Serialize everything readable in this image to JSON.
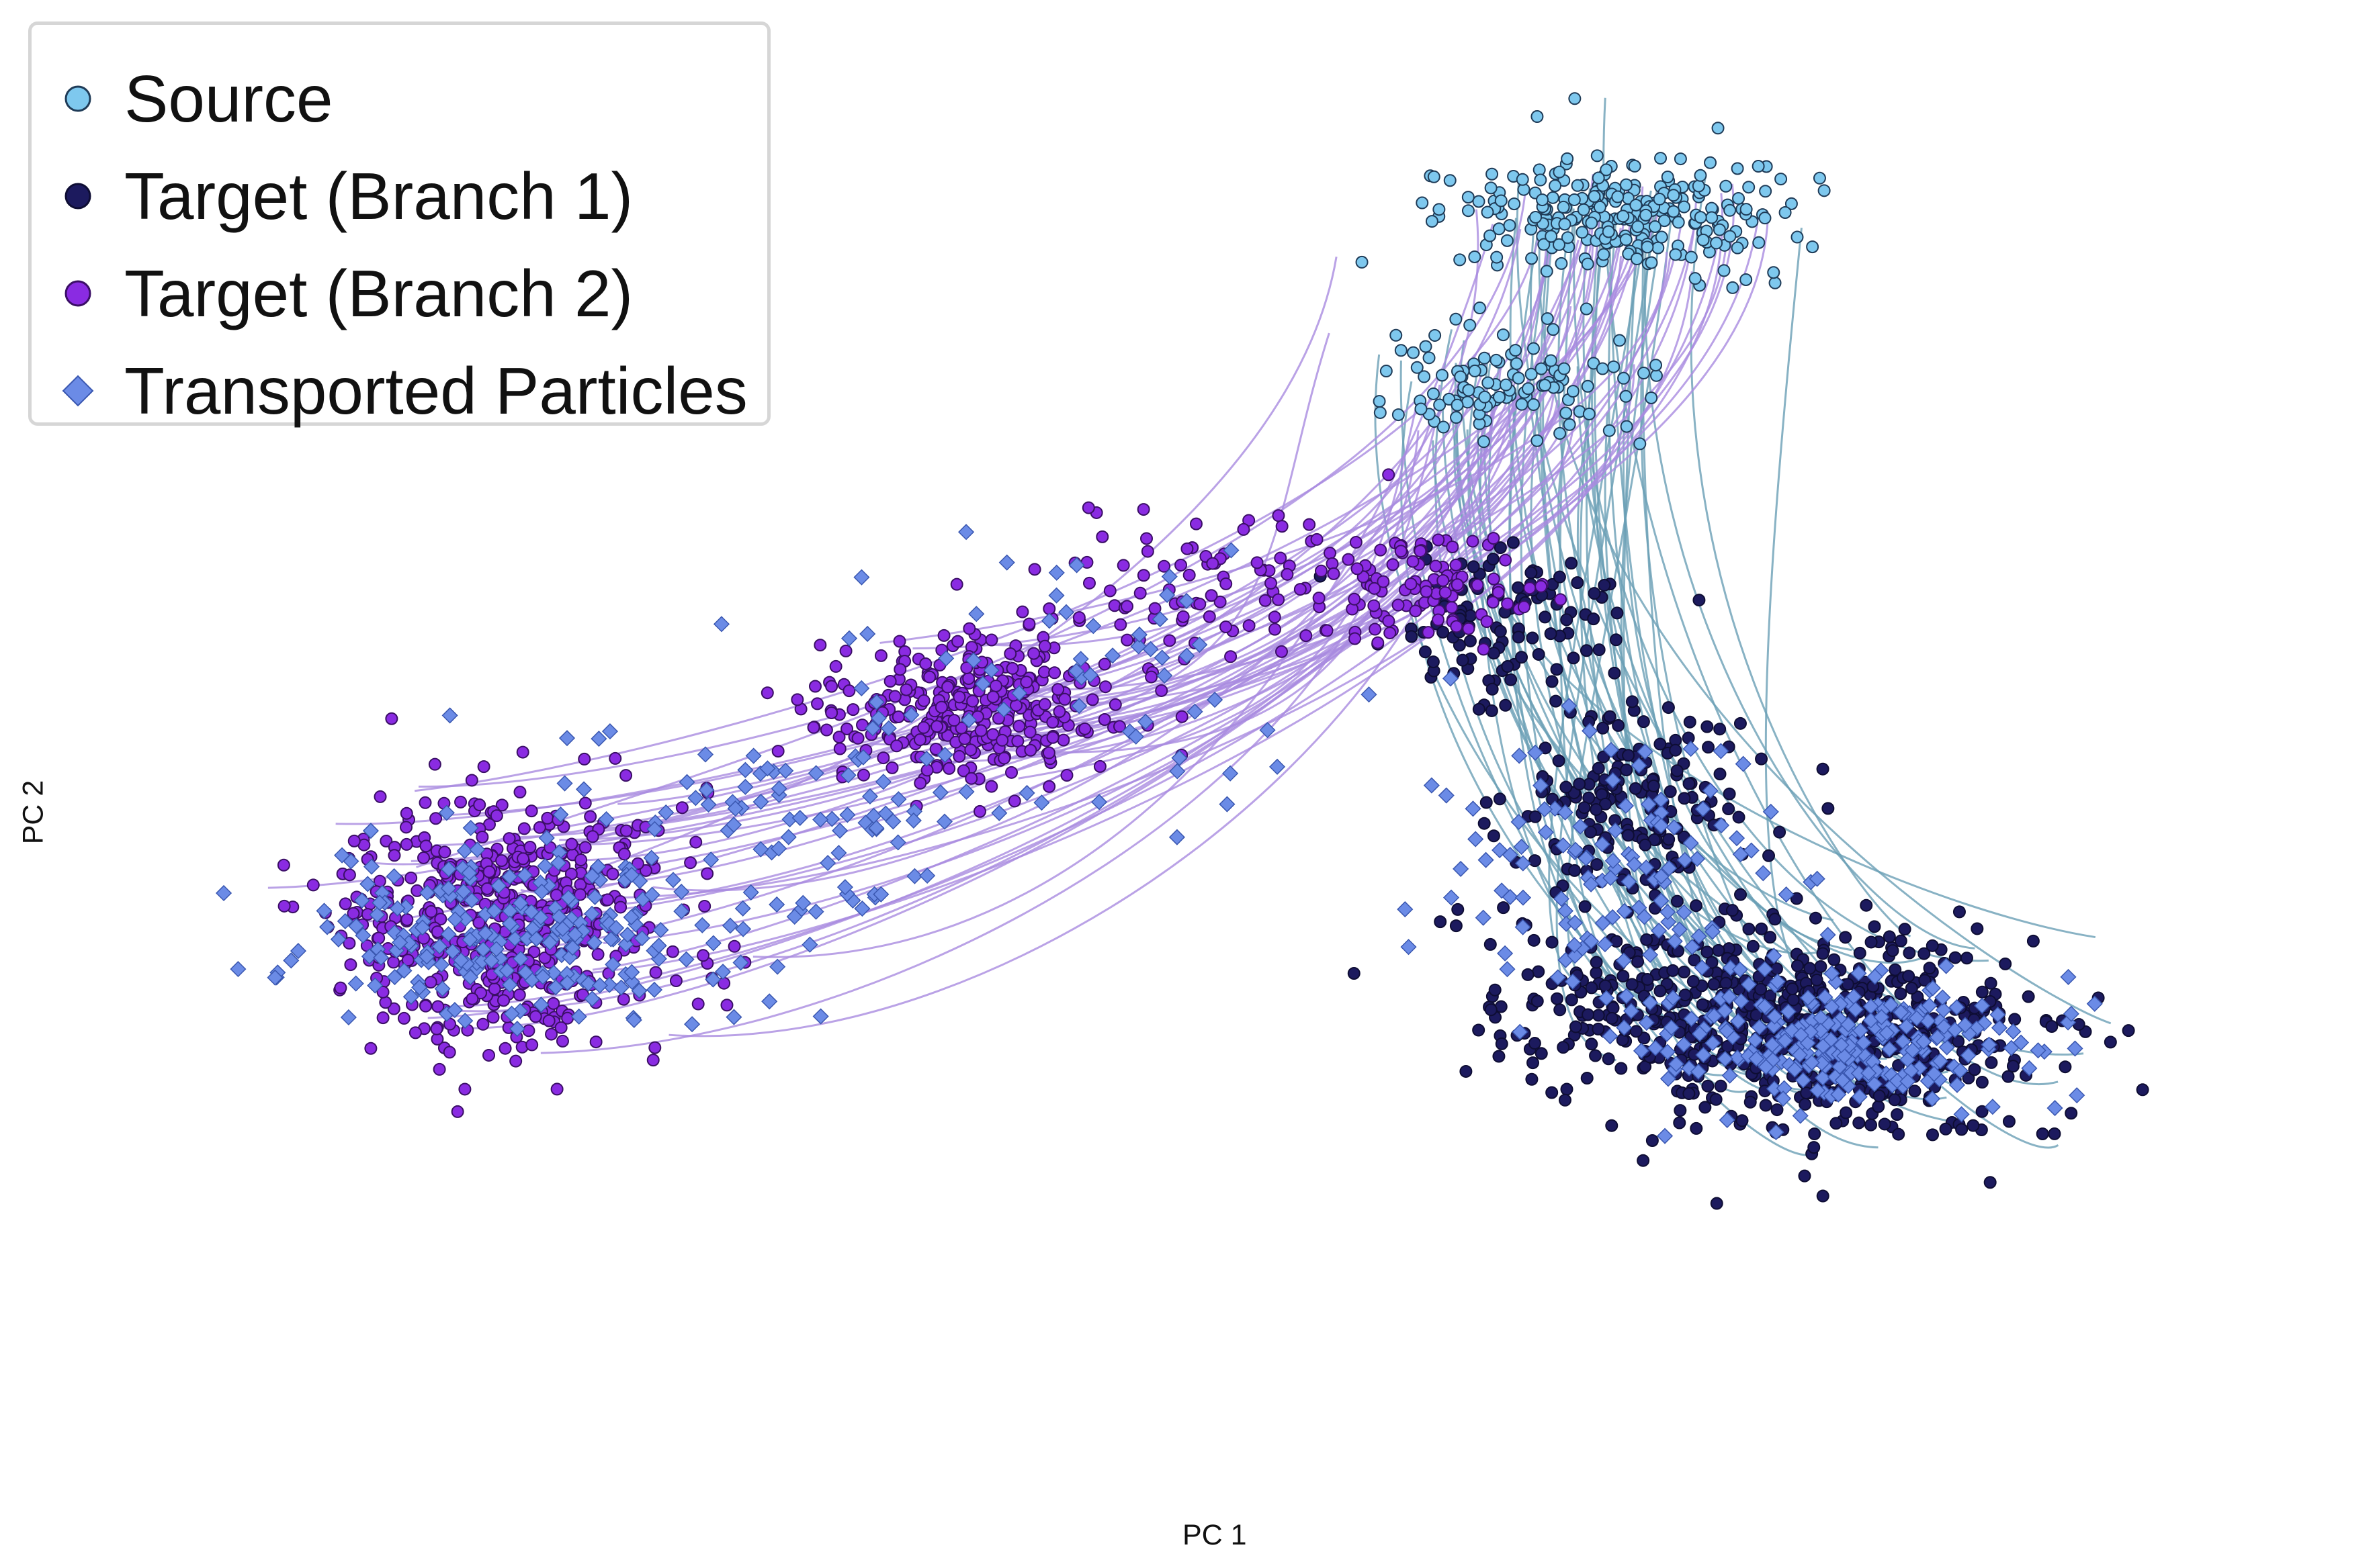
{
  "chart_data": {
    "type": "scatter",
    "xlabel": "PC 1",
    "ylabel": "PC 2",
    "xlim": [
      -4.5,
      4.5
    ],
    "ylim": [
      -3.0,
      3.2
    ],
    "grid": false,
    "legend_position": "top-left",
    "series": [
      {
        "name": "Source",
        "marker": "circle",
        "color": "#7ec8ee",
        "edge": "#1f3b57",
        "clusters": [
          {
            "cx": 1.7,
            "cy": 2.6,
            "sx": 0.35,
            "sy": 0.13,
            "n": 260
          },
          {
            "cx": 1.2,
            "cy": 1.85,
            "sx": 0.28,
            "sy": 0.12,
            "n": 110
          }
        ]
      },
      {
        "name": "Target (Branch 1)",
        "marker": "circle",
        "color": "#1c1a5e",
        "edge": "#0e0d33",
        "clusters": [
          {
            "cx": 2.6,
            "cy": -1.0,
            "sx": 0.45,
            "sy": 0.22,
            "n": 520
          },
          {
            "cx": 1.75,
            "cy": -0.9,
            "sx": 0.35,
            "sy": 0.18,
            "n": 180
          },
          {
            "cx": 1.75,
            "cy": 0.0,
            "sx": 0.24,
            "sy": 0.22,
            "n": 180
          },
          {
            "cx": 1.2,
            "cy": 0.8,
            "sx": 0.24,
            "sy": 0.17,
            "n": 110
          }
        ]
      },
      {
        "name": "Target (Branch 2)",
        "marker": "circle",
        "color": "#8a2be2",
        "edge": "#3b0f66",
        "clusters": [
          {
            "cx": -2.95,
            "cy": -0.5,
            "sx": 0.34,
            "sy": 0.28,
            "n": 560
          },
          {
            "cx": -1.0,
            "cy": 0.42,
            "sx": 0.3,
            "sy": 0.16,
            "n": 320
          },
          {
            "cx": 0.1,
            "cy": 0.95,
            "sx": 0.45,
            "sy": 0.15,
            "n": 110
          },
          {
            "cx": 0.85,
            "cy": 0.95,
            "sx": 0.25,
            "sy": 0.12,
            "n": 80
          }
        ]
      },
      {
        "name": "Transported Particles",
        "marker": "diamond",
        "color": "#6b8be6",
        "edge": "#3a57b0",
        "clusters": [
          {
            "cx": -2.85,
            "cy": -0.55,
            "sx": 0.45,
            "sy": 0.18,
            "n": 220
          },
          {
            "cx": 2.6,
            "cy": -1.05,
            "sx": 0.38,
            "sy": 0.14,
            "n": 260
          },
          {
            "cx": 1.7,
            "cy": -0.35,
            "sx": 0.35,
            "sy": 0.3,
            "n": 120
          },
          {
            "cx": -1.8,
            "cy": -0.1,
            "sx": 0.6,
            "sy": 0.25,
            "n": 90
          },
          {
            "cx": -0.5,
            "cy": 0.55,
            "sx": 0.6,
            "sy": 0.3,
            "n": 60
          }
        ]
      }
    ]
  },
  "legend": {
    "items": [
      {
        "label": "Source",
        "color": "#7ec8ee",
        "edge": "#1f3b57",
        "marker": "circle"
      },
      {
        "label": "Target (Branch 1)",
        "color": "#1c1a5e",
        "edge": "#0e0d33",
        "marker": "circle"
      },
      {
        "label": "Target (Branch 2)",
        "color": "#8a2be2",
        "edge": "#3b0f66",
        "marker": "circle"
      },
      {
        "label": "Transported Particles",
        "color": "#6b8be6",
        "edge": "#3a57b0",
        "marker": "diamond"
      }
    ]
  },
  "trajectory_colors": {
    "branch1": "#6a9fb5",
    "branch2": "#a98be0"
  }
}
